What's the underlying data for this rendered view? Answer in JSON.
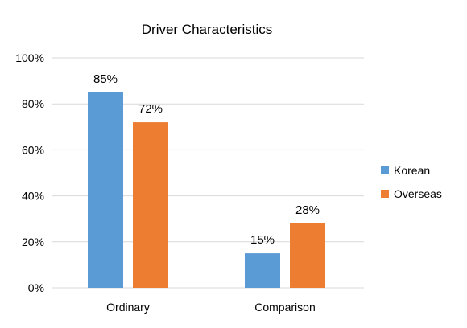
{
  "chart_data": {
    "type": "bar",
    "title": "Driver Characteristics",
    "xlabel": "",
    "ylabel": "",
    "categories": [
      "Ordinary",
      "Comparison"
    ],
    "series": [
      {
        "name": "Korean",
        "values": [
          85,
          15
        ],
        "labels": [
          "85%",
          "15%"
        ],
        "color": "#5b9bd5"
      },
      {
        "name": "Overseas",
        "values": [
          72,
          28
        ],
        "labels": [
          "72%",
          "28%"
        ],
        "color": "#ed7d31"
      }
    ],
    "ylim": [
      0,
      100
    ],
    "yticks": [
      0,
      20,
      40,
      60,
      80,
      100
    ],
    "ytick_labels": [
      "0%",
      "20%",
      "40%",
      "60%",
      "80%",
      "100%"
    ],
    "grid": true,
    "legend": "right"
  }
}
